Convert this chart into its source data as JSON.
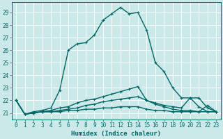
{
  "title": "",
  "xlabel": "Humidex (Indice chaleur)",
  "ylabel": "",
  "background_color": "#cce9e9",
  "grid_color_major": "#ffffff",
  "grid_color_minor": "#e8c8c8",
  "line_color": "#006666",
  "xlim": [
    -0.5,
    23.5
  ],
  "ylim": [
    20.5,
    29.8
  ],
  "xticks": [
    0,
    1,
    2,
    3,
    4,
    5,
    6,
    7,
    8,
    9,
    10,
    11,
    12,
    13,
    14,
    15,
    16,
    17,
    18,
    19,
    20,
    21,
    22,
    23
  ],
  "yticks": [
    21,
    22,
    23,
    24,
    25,
    26,
    27,
    28,
    29
  ],
  "series": [
    {
      "x": [
        0,
        1,
        2,
        3,
        4,
        5,
        6,
        7,
        8,
        9,
        10,
        11,
        12,
        13,
        14,
        15,
        16,
        17,
        18,
        19,
        20,
        21,
        22,
        23
      ],
      "y": [
        22.0,
        20.9,
        21.1,
        21.2,
        21.4,
        22.8,
        26.0,
        26.5,
        26.6,
        27.2,
        28.4,
        28.9,
        29.4,
        28.9,
        29.0,
        27.6,
        25.0,
        24.3,
        23.0,
        22.2,
        22.2,
        21.5,
        21.1,
        21.1
      ]
    },
    {
      "x": [
        0,
        1,
        2,
        3,
        4,
        5,
        6,
        7,
        8,
        9,
        10,
        11,
        12,
        13,
        14,
        15,
        16,
        17,
        18,
        19,
        20,
        21,
        22,
        23
      ],
      "y": [
        22.0,
        20.9,
        21.0,
        21.1,
        21.2,
        21.4,
        21.5,
        21.8,
        22.0,
        22.1,
        22.3,
        22.5,
        22.7,
        22.9,
        23.1,
        22.0,
        21.7,
        21.5,
        21.3,
        21.2,
        21.2,
        21.1,
        21.6,
        21.1
      ]
    },
    {
      "x": [
        0,
        1,
        2,
        3,
        4,
        5,
        6,
        7,
        8,
        9,
        10,
        11,
        12,
        13,
        14,
        15,
        16,
        17,
        18,
        19,
        20,
        21,
        22,
        23
      ],
      "y": [
        22.0,
        20.9,
        21.0,
        21.1,
        21.1,
        21.2,
        21.3,
        21.4,
        21.6,
        21.7,
        21.9,
        22.0,
        22.1,
        22.2,
        22.3,
        22.0,
        21.8,
        21.6,
        21.5,
        21.4,
        22.2,
        22.2,
        21.4,
        21.1
      ]
    },
    {
      "x": [
        0,
        1,
        2,
        3,
        4,
        5,
        6,
        7,
        8,
        9,
        10,
        11,
        12,
        13,
        14,
        15,
        16,
        17,
        18,
        19,
        20,
        21,
        22,
        23
      ],
      "y": [
        22.0,
        20.9,
        21.0,
        21.1,
        21.1,
        21.1,
        21.2,
        21.2,
        21.3,
        21.3,
        21.4,
        21.4,
        21.5,
        21.5,
        21.5,
        21.3,
        21.2,
        21.2,
        21.1,
        21.1,
        21.1,
        21.1,
        21.1,
        21.1
      ]
    }
  ],
  "marker": "P",
  "markersize": 3,
  "linewidth": 1.0,
  "font_size_ticks": 5.5,
  "font_size_xlabel": 6.5
}
